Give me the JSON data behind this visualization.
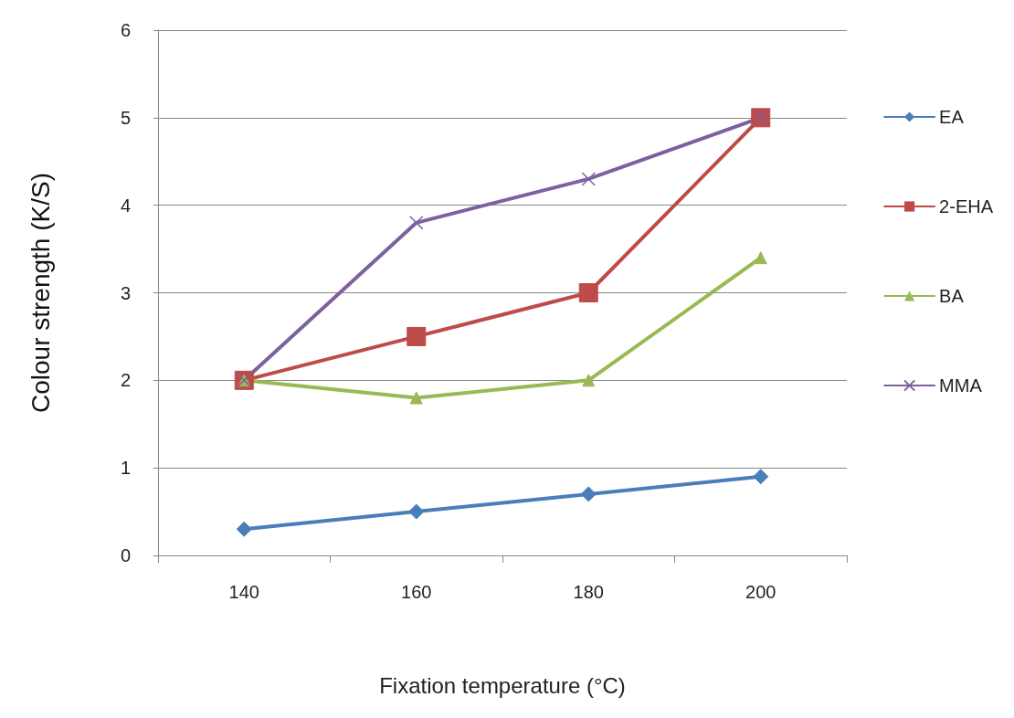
{
  "chart_data": {
    "type": "line",
    "xlabel": "Fixation temperature (°C)",
    "ylabel": "Colour strength (K/S)",
    "categories": [
      "140",
      "160",
      "180",
      "200"
    ],
    "ylim": [
      0,
      6
    ],
    "yticks": [
      0,
      1,
      2,
      3,
      4,
      5,
      6
    ],
    "grid": "y",
    "legend": "right",
    "series": [
      {
        "name": "EA",
        "color": "#4a7ebb",
        "marker": "diamond",
        "values": [
          0.3,
          0.5,
          0.7,
          0.9
        ]
      },
      {
        "name": "2-EHA",
        "color": "#be4b48",
        "marker": "square",
        "values": [
          2,
          2.5,
          3,
          5
        ]
      },
      {
        "name": "BA",
        "color": "#98b954",
        "marker": "triangle",
        "values": [
          2,
          1.8,
          2,
          3.4
        ]
      },
      {
        "name": "MMA",
        "color": "#7d60a0",
        "marker": "cross",
        "values": [
          2,
          3.8,
          4.3,
          5
        ]
      }
    ]
  }
}
